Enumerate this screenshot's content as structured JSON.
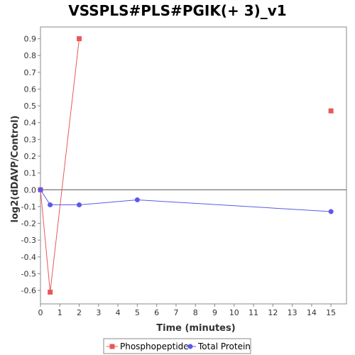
{
  "chart_data": {
    "type": "line",
    "title": "VSSPLS#PLS#PGIK(+ 3)_v1",
    "xlabel": "Time (minutes)",
    "ylabel": "log2(dDAVP/Control)",
    "xlim": [
      0,
      15.8
    ],
    "ylim": [
      -0.68,
      0.97
    ],
    "xticks": [
      0,
      1,
      2,
      3,
      4,
      5,
      6,
      7,
      8,
      9,
      10,
      11,
      12,
      13,
      14,
      15
    ],
    "yticks": [
      -0.6,
      -0.5,
      -0.4,
      -0.3,
      -0.2,
      -0.1,
      0.0,
      0.1,
      0.2,
      0.3,
      0.4,
      0.5,
      0.6,
      0.7,
      0.8,
      0.9
    ],
    "ytick_labels": [
      "-0.6",
      "-0.5",
      "-0.4",
      "-0.3",
      "-0.2",
      "-0.1",
      "0.0",
      "0.1",
      "0.2",
      "0.3",
      "0.4",
      "0.5",
      "0.6",
      "0.7",
      "0.8",
      "0.9"
    ],
    "grid": false,
    "legend_position": "bottom",
    "series": [
      {
        "name": "Phosphopeptide",
        "color": "#e8585a",
        "marker": "square",
        "connected_segments": [
          [
            0,
            1,
            2
          ]
        ],
        "points": [
          [
            0,
            0.0
          ],
          [
            0.5,
            -0.61
          ],
          [
            2,
            0.9
          ],
          [
            15,
            0.47
          ]
        ]
      },
      {
        "name": "Total Protein",
        "color": "#5a5ae8",
        "marker": "circle",
        "connected_segments": [
          [
            0,
            1,
            2,
            3,
            4
          ]
        ],
        "points": [
          [
            0,
            0.0
          ],
          [
            0.5,
            -0.09
          ],
          [
            2,
            -0.09
          ],
          [
            5,
            -0.06
          ],
          [
            15,
            -0.13
          ]
        ]
      }
    ]
  }
}
